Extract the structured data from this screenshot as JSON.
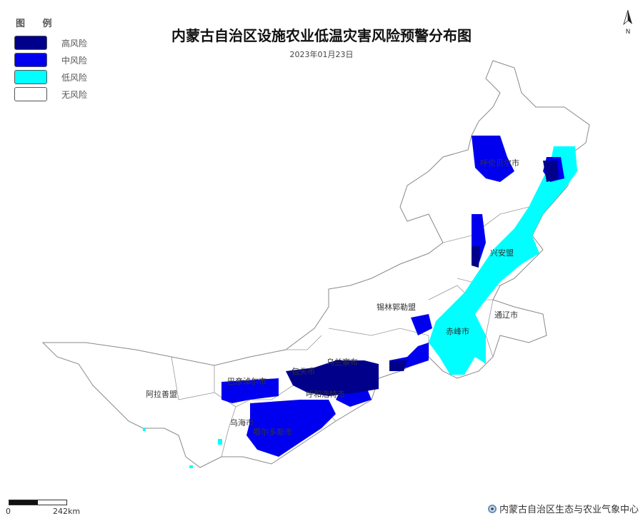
{
  "title": "内蒙古自治区设施农业低温灾害风险预警分布图",
  "date": "2023年01月23日",
  "legend": {
    "title": "图 例",
    "items": [
      {
        "label": "高风险",
        "color": "#00008B"
      },
      {
        "label": "中风险",
        "color": "#0000EE"
      },
      {
        "label": "低风险",
        "color": "#00FFFF"
      },
      {
        "label": "无风险",
        "color": "#FFFFFF"
      }
    ]
  },
  "north_arrow": {
    "label": "N",
    "icon": "north-arrow-icon"
  },
  "regions": [
    "呼伦贝尔市",
    "兴安盟",
    "通辽市",
    "赤峰市",
    "锡林郭勒盟",
    "乌兰察布",
    "包头市",
    "呼和浩特市",
    "巴彦淖尔市",
    "乌海市",
    "鄂尔多斯市",
    "阿拉善盟"
  ],
  "scale": {
    "start": "0",
    "end": "242km"
  },
  "credit": {
    "text": "内蒙古自治区生态与农业气象中心",
    "icon": "agency-logo-icon"
  }
}
